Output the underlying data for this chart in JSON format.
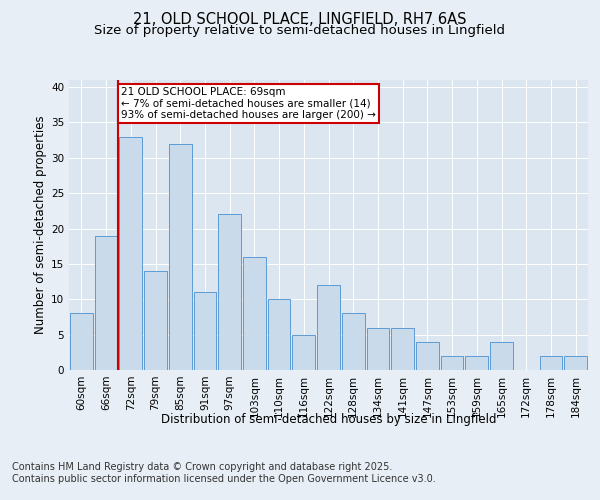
{
  "title_line1": "21, OLD SCHOOL PLACE, LINGFIELD, RH7 6AS",
  "title_line2": "Size of property relative to semi-detached houses in Lingfield",
  "xlabel": "Distribution of semi-detached houses by size in Lingfield",
  "ylabel": "Number of semi-detached properties",
  "categories": [
    "60sqm",
    "66sqm",
    "72sqm",
    "79sqm",
    "85sqm",
    "91sqm",
    "97sqm",
    "103sqm",
    "110sqm",
    "116sqm",
    "122sqm",
    "128sqm",
    "134sqm",
    "141sqm",
    "147sqm",
    "153sqm",
    "159sqm",
    "165sqm",
    "172sqm",
    "178sqm",
    "184sqm"
  ],
  "values": [
    8,
    19,
    33,
    14,
    32,
    11,
    22,
    16,
    10,
    5,
    12,
    8,
    6,
    6,
    4,
    2,
    2,
    4,
    0,
    2,
    2
  ],
  "bar_color": "#c9daea",
  "bar_edge_color": "#5b9bd5",
  "reference_line_x": 1.5,
  "annotation_text": "21 OLD SCHOOL PLACE: 69sqm\n← 7% of semi-detached houses are smaller (14)\n93% of semi-detached houses are larger (200) →",
  "annotation_box_color": "#ffffff",
  "annotation_box_edge": "#cc0000",
  "ref_line_color": "#cc0000",
  "ylim": [
    0,
    41
  ],
  "yticks": [
    0,
    5,
    10,
    15,
    20,
    25,
    30,
    35,
    40
  ],
  "background_color": "#e8eef5",
  "plot_background": "#dce6f1",
  "footer_line1": "Contains HM Land Registry data © Crown copyright and database right 2025.",
  "footer_line2": "Contains public sector information licensed under the Open Government Licence v3.0.",
  "title_fontsize": 10.5,
  "subtitle_fontsize": 9.5,
  "axis_label_fontsize": 8.5,
  "tick_fontsize": 7.5,
  "annotation_fontsize": 7.5,
  "footer_fontsize": 7.0
}
